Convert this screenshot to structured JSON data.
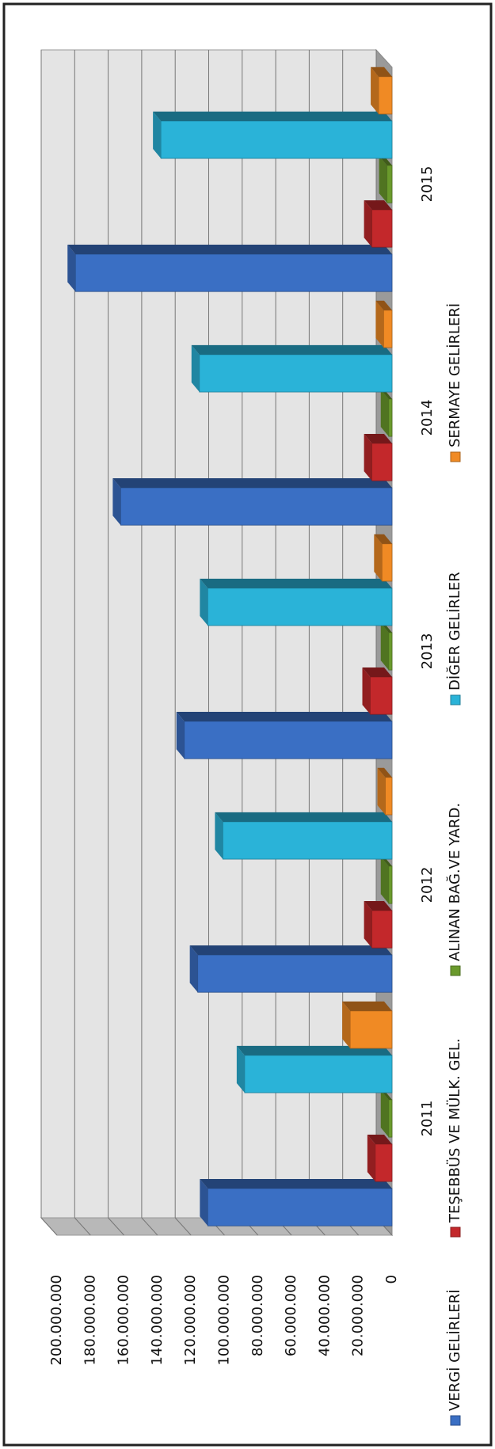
{
  "chart_data": {
    "type": "bar",
    "categories": [
      "2011",
      "2012",
      "2013",
      "2014",
      "2015"
    ],
    "series": [
      {
        "name": "VERGİ GELİRLERİ",
        "color": "#3a6fc4",
        "values": [
          110000000,
          116000000,
          124000000,
          162000000,
          189000000
        ]
      },
      {
        "name": "TEŞEBBÜS VE MÜLK. GEL.",
        "color": "#c3282b",
        "values": [
          10000000,
          12000000,
          13000000,
          12000000,
          12000000
        ]
      },
      {
        "name": "ALINAN BAĞ.VE YARD.",
        "color": "#6a9a2c",
        "values": [
          2000000,
          2000000,
          2000000,
          2000000,
          3000000
        ]
      },
      {
        "name": "DİĞER GELİRLER",
        "color": "#2ab3d8",
        "values": [
          88000000,
          101000000,
          110000000,
          115000000,
          138000000
        ]
      },
      {
        "name": "SERMAYE GELİRLERİ",
        "color": "#f08a24",
        "values": [
          25000000,
          4000000,
          6000000,
          5000000,
          8000000
        ]
      }
    ],
    "ylim": [
      0,
      200000000
    ],
    "yticks": [
      0,
      {
        "value": 20000000,
        "label": "20.000.000"
      },
      {
        "value": 40000000,
        "label": "40.000.000"
      },
      {
        "value": 60000000,
        "label": "60.000.000"
      },
      {
        "value": 80000000,
        "label": "80.000.000"
      },
      {
        "value": 100000000,
        "label": "100.000.000"
      },
      {
        "value": 120000000,
        "label": "120.000.000"
      },
      {
        "value": 140000000,
        "label": "140.000.000"
      },
      {
        "value": 160000000,
        "label": "160.000.000"
      },
      {
        "value": 180000000,
        "label": "180.000.000"
      },
      {
        "value": 200000000,
        "label": "200.000.000"
      }
    ],
    "grid": true,
    "legend": "bottom"
  }
}
